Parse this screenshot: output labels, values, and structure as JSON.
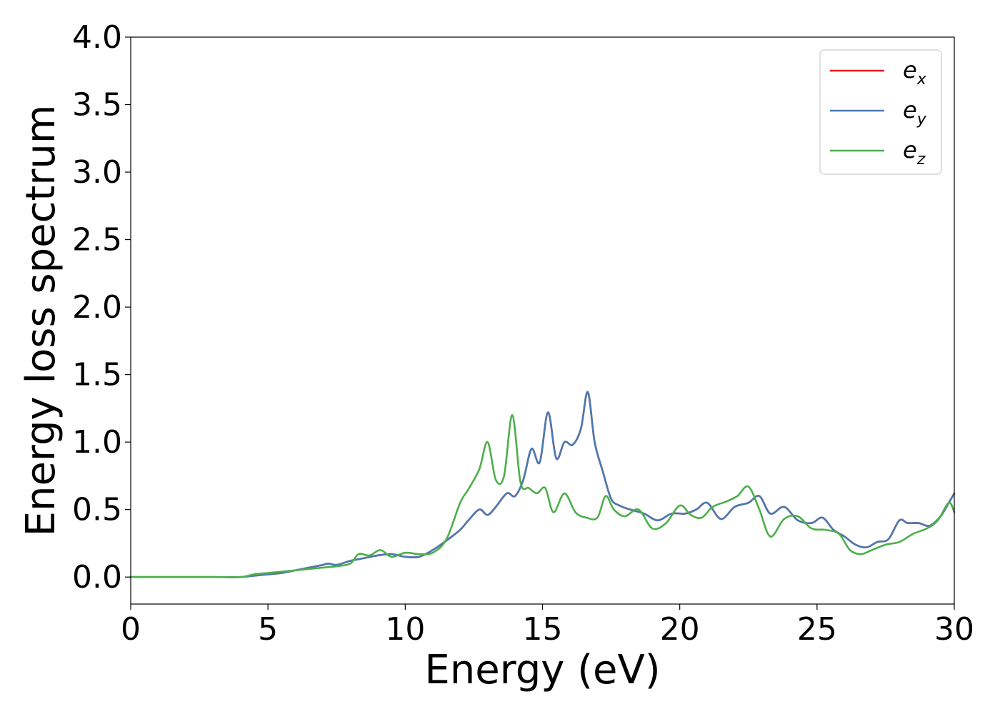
{
  "chart_data": {
    "type": "line",
    "title": "",
    "xlabel": "Energy (eV)",
    "ylabel": "Energy loss spectrum",
    "xlim": [
      0,
      30
    ],
    "ylim": [
      -0.2,
      4.0
    ],
    "xticks": [
      0,
      5,
      10,
      15,
      20,
      25,
      30
    ],
    "xtick_labels": [
      "0",
      "5",
      "10",
      "15",
      "20",
      "25",
      "30"
    ],
    "yticks": [
      0.0,
      0.5,
      1.0,
      1.5,
      2.0,
      2.5,
      3.0,
      3.5,
      4.0
    ],
    "ytick_labels": [
      "0.0",
      "0.5",
      "1.0",
      "1.5",
      "2.0",
      "2.5",
      "3.0",
      "3.5",
      "4.0"
    ],
    "grid": false,
    "legend_position": "top-right",
    "series": [
      {
        "name": "e_x",
        "legend_base": "e",
        "legend_sub": "x",
        "color": "#e41a1c",
        "x": [
          0,
          1,
          2,
          3,
          4,
          4.5,
          5,
          5.5,
          6,
          6.5,
          7,
          7.2,
          7.5,
          8,
          8.5,
          9,
          9.5,
          10,
          10.5,
          11,
          11.5,
          12,
          12.3,
          12.7,
          13,
          13.3,
          13.7,
          14,
          14.3,
          14.6,
          14.9,
          15.2,
          15.5,
          15.8,
          16.1,
          16.4,
          16.65,
          16.9,
          17.2,
          17.5,
          17.8,
          18.2,
          18.7,
          19.2,
          19.7,
          20.2,
          20.6,
          21,
          21.5,
          22,
          22.5,
          22.9,
          23.3,
          23.8,
          24.3,
          24.8,
          25.2,
          25.6,
          26,
          26.4,
          26.8,
          27.2,
          27.6,
          28,
          28.3,
          28.7,
          29.1,
          29.5,
          29.8,
          30
        ],
        "y": [
          0.0,
          0.0,
          0.0,
          0.0,
          0.0,
          0.01,
          0.02,
          0.03,
          0.05,
          0.07,
          0.09,
          0.1,
          0.09,
          0.12,
          0.14,
          0.16,
          0.17,
          0.15,
          0.15,
          0.2,
          0.27,
          0.35,
          0.42,
          0.5,
          0.46,
          0.52,
          0.62,
          0.6,
          0.72,
          0.95,
          0.85,
          1.22,
          0.88,
          1.0,
          0.98,
          1.1,
          1.37,
          1.0,
          0.78,
          0.58,
          0.53,
          0.5,
          0.47,
          0.42,
          0.47,
          0.47,
          0.5,
          0.55,
          0.43,
          0.52,
          0.55,
          0.6,
          0.47,
          0.52,
          0.42,
          0.4,
          0.44,
          0.35,
          0.3,
          0.24,
          0.22,
          0.26,
          0.28,
          0.42,
          0.4,
          0.4,
          0.38,
          0.45,
          0.55,
          0.62
        ]
      },
      {
        "name": "e_y",
        "legend_base": "e",
        "legend_sub": "y",
        "color": "#4a7ab3",
        "x": [
          0,
          1,
          2,
          3,
          4,
          4.5,
          5,
          5.5,
          6,
          6.5,
          7,
          7.2,
          7.5,
          8,
          8.5,
          9,
          9.5,
          10,
          10.5,
          11,
          11.5,
          12,
          12.3,
          12.7,
          13,
          13.3,
          13.7,
          14,
          14.3,
          14.6,
          14.9,
          15.2,
          15.5,
          15.8,
          16.1,
          16.4,
          16.65,
          16.9,
          17.2,
          17.5,
          17.8,
          18.2,
          18.7,
          19.2,
          19.7,
          20.2,
          20.6,
          21,
          21.5,
          22,
          22.5,
          22.9,
          23.3,
          23.8,
          24.3,
          24.8,
          25.2,
          25.6,
          26,
          26.4,
          26.8,
          27.2,
          27.6,
          28,
          28.3,
          28.7,
          29.1,
          29.5,
          29.8,
          30
        ],
        "y": [
          0.0,
          0.0,
          0.0,
          0.0,
          0.0,
          0.01,
          0.02,
          0.03,
          0.05,
          0.07,
          0.09,
          0.1,
          0.09,
          0.12,
          0.14,
          0.16,
          0.17,
          0.15,
          0.15,
          0.2,
          0.27,
          0.35,
          0.42,
          0.5,
          0.46,
          0.52,
          0.62,
          0.6,
          0.72,
          0.95,
          0.85,
          1.22,
          0.88,
          1.0,
          0.98,
          1.1,
          1.37,
          1.0,
          0.78,
          0.58,
          0.53,
          0.5,
          0.47,
          0.42,
          0.47,
          0.47,
          0.5,
          0.55,
          0.43,
          0.52,
          0.55,
          0.6,
          0.47,
          0.52,
          0.42,
          0.4,
          0.44,
          0.35,
          0.3,
          0.24,
          0.22,
          0.26,
          0.28,
          0.42,
          0.4,
          0.4,
          0.38,
          0.45,
          0.55,
          0.62
        ]
      },
      {
        "name": "e_z",
        "legend_base": "e",
        "legend_sub": "z",
        "color": "#4daf4a",
        "x": [
          0,
          1,
          2,
          3,
          4,
          4.5,
          5,
          5.5,
          6,
          6.5,
          7,
          7.5,
          8,
          8.3,
          8.7,
          9.1,
          9.5,
          10,
          10.5,
          11,
          11.5,
          12,
          12.3,
          12.7,
          13,
          13.3,
          13.6,
          13.9,
          14.2,
          14.5,
          14.8,
          15.1,
          15.4,
          15.8,
          16.2,
          16.6,
          17,
          17.3,
          17.6,
          18,
          18.5,
          19,
          19.5,
          20,
          20.4,
          20.8,
          21.2,
          21.7,
          22.1,
          22.5,
          22.9,
          23.3,
          23.8,
          24.3,
          24.8,
          25.3,
          25.8,
          26.2,
          26.6,
          27,
          27.5,
          28,
          28.5,
          29,
          29.4,
          29.8,
          30
        ],
        "y": [
          0.0,
          0.0,
          0.0,
          0.0,
          0.0,
          0.02,
          0.03,
          0.04,
          0.05,
          0.06,
          0.07,
          0.08,
          0.1,
          0.17,
          0.16,
          0.2,
          0.15,
          0.18,
          0.17,
          0.18,
          0.28,
          0.55,
          0.65,
          0.8,
          1.0,
          0.72,
          0.75,
          1.2,
          0.7,
          0.66,
          0.62,
          0.66,
          0.48,
          0.62,
          0.48,
          0.44,
          0.44,
          0.6,
          0.5,
          0.45,
          0.5,
          0.36,
          0.4,
          0.53,
          0.46,
          0.44,
          0.52,
          0.56,
          0.6,
          0.67,
          0.5,
          0.3,
          0.43,
          0.45,
          0.36,
          0.35,
          0.32,
          0.2,
          0.17,
          0.2,
          0.24,
          0.26,
          0.32,
          0.36,
          0.42,
          0.55,
          0.48
        ]
      }
    ]
  }
}
